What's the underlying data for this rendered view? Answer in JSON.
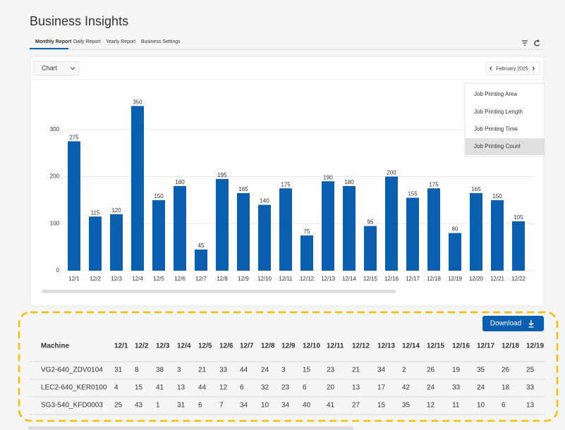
{
  "header": {
    "title": "Business Insights",
    "tabs": [
      "Monthly Report",
      "Daily Report",
      "Yearly Report",
      "Business Settings"
    ]
  },
  "toolbar": {
    "view": "Chart",
    "period": "February 2025"
  },
  "menu": {
    "items": [
      "Job Printing Area",
      "Job Printing Length",
      "Job Printing Time",
      "Job Printing Count"
    ],
    "selected": 3
  },
  "chart_data": {
    "type": "bar",
    "categories": [
      "12/1",
      "12/2",
      "12/3",
      "12/4",
      "12/5",
      "12/6",
      "12/7",
      "12/8",
      "12/9",
      "12/10",
      "12/11",
      "12/12",
      "12/13",
      "12/14",
      "12/15",
      "12/16",
      "12/17",
      "12/18",
      "12/19",
      "12/20",
      "12/21",
      "12/22"
    ],
    "values": [
      275,
      115,
      120,
      350,
      150,
      180,
      45,
      195,
      165,
      140,
      175,
      75,
      190,
      180,
      95,
      200,
      155,
      175,
      80,
      165,
      150,
      105
    ],
    "color": "#0b5fb0",
    "ylim": [
      0,
      400
    ],
    "yticks": [
      0,
      100,
      200,
      300
    ],
    "grid": true
  },
  "download": "Download",
  "table": {
    "columns": [
      "Machine",
      "12/1",
      "12/2",
      "12/3",
      "12/4",
      "12/5",
      "12/6",
      "12/7",
      "12/8",
      "12/9",
      "12/10",
      "12/11",
      "12/12",
      "12/13",
      "12/14",
      "12/15",
      "12/16",
      "12/17",
      "12/18",
      "12/19"
    ],
    "rows": [
      [
        "VG2-640_ZDV0104",
        31,
        8,
        38,
        3,
        21,
        33,
        44,
        24,
        3,
        15,
        23,
        21,
        34,
        2,
        26,
        19,
        35,
        26,
        25
      ],
      [
        "LEC2-640_KER0100",
        4,
        15,
        41,
        13,
        44,
        12,
        6,
        32,
        23,
        6,
        20,
        13,
        17,
        42,
        24,
        33,
        24,
        18,
        33
      ],
      [
        "SG3-540_KFD0003",
        25,
        43,
        1,
        31,
        6,
        7,
        34,
        10,
        34,
        40,
        41,
        27,
        15,
        35,
        12,
        11,
        10,
        6,
        13
      ]
    ]
  }
}
